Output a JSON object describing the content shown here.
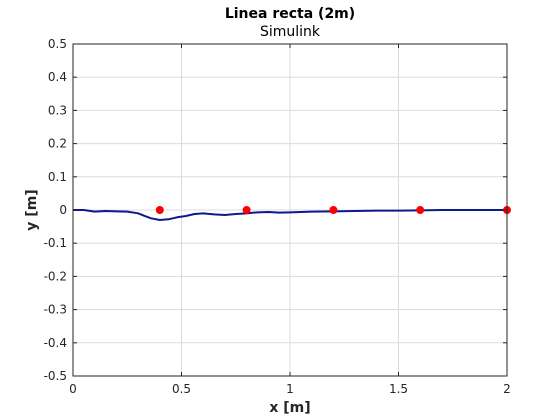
{
  "chart_data": {
    "type": "line",
    "title": "Linea recta (2m)",
    "subtitle": "Simulink",
    "xlabel": "x [m]",
    "ylabel": "y [m]",
    "xlim": [
      0,
      2
    ],
    "ylim": [
      -0.5,
      0.5
    ],
    "xticks": [
      0,
      0.5,
      1,
      1.5,
      2
    ],
    "xtick_labels": [
      "0",
      "0.5",
      "1",
      "1.5",
      "2"
    ],
    "yticks": [
      0.5,
      0.4,
      0.3,
      0.2,
      0.1,
      0,
      -0.1,
      -0.2,
      -0.3,
      -0.4,
      -0.5
    ],
    "ytick_labels": [
      "0.5",
      "0.4",
      "0.3",
      "0.2",
      "0.1",
      "0",
      "-0.1",
      "-0.2",
      "-0.3",
      "-0.4",
      "-0.5"
    ],
    "grid": true,
    "series": [
      {
        "color": "#0b1a8c",
        "style": "line",
        "x": [
          0,
          0.05,
          0.1,
          0.15,
          0.2,
          0.25,
          0.3,
          0.33,
          0.36,
          0.4,
          0.44,
          0.48,
          0.52,
          0.56,
          0.6,
          0.65,
          0.7,
          0.75,
          0.8,
          0.85,
          0.9,
          0.95,
          1.0,
          1.1,
          1.2,
          1.3,
          1.4,
          1.5,
          1.6,
          1.7,
          1.8,
          1.9,
          2.0
        ],
        "y": [
          0,
          0,
          -0.005,
          -0.003,
          -0.004,
          -0.005,
          -0.01,
          -0.018,
          -0.025,
          -0.03,
          -0.028,
          -0.022,
          -0.018,
          -0.012,
          -0.01,
          -0.013,
          -0.015,
          -0.012,
          -0.01,
          -0.007,
          -0.006,
          -0.008,
          -0.007,
          -0.005,
          -0.004,
          -0.003,
          -0.002,
          -0.002,
          -0.001,
          0,
          0,
          0,
          0
        ]
      },
      {
        "color": "#ff0000",
        "style": "points",
        "x": [
          0.4,
          0.8,
          1.2,
          1.6,
          2.0
        ],
        "y": [
          0,
          0,
          0,
          0,
          0
        ]
      }
    ]
  }
}
